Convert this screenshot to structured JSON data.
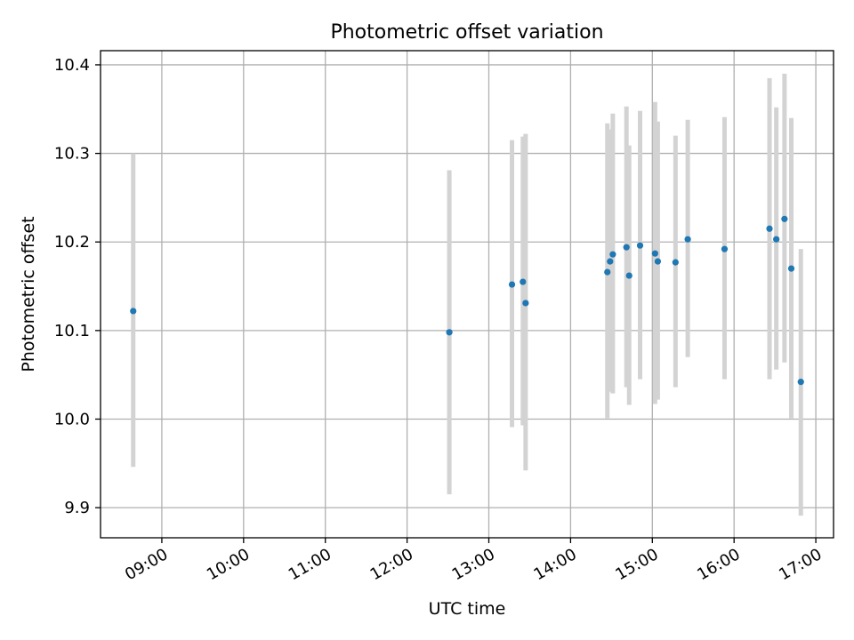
{
  "chart_data": {
    "type": "scatter",
    "title": "Photometric offset variation",
    "xlabel": "UTC time",
    "ylabel": "Photometric offset",
    "x_scale": "time",
    "xlim": [
      "08:15",
      "17:13"
    ],
    "ylim": [
      9.866,
      10.416
    ],
    "x_ticks": [
      "09:00",
      "10:00",
      "11:00",
      "12:00",
      "13:00",
      "14:00",
      "15:00",
      "16:00",
      "17:00"
    ],
    "y_ticks": [
      "9.9",
      "10.0",
      "10.1",
      "10.2",
      "10.3",
      "10.4"
    ],
    "grid": true,
    "colors": {
      "point": "#1f77b4",
      "errorbar": "#d3d3d3",
      "grid": "#b0b0b0"
    },
    "series": [
      {
        "x": [
          "08:39",
          "12:31",
          "13:17",
          "13:25",
          "13:27",
          "14:27",
          "14:29",
          "14:31",
          "14:41",
          "14:43",
          "14:51",
          "15:02",
          "15:04",
          "15:17",
          "15:26",
          "15:53",
          "16:26",
          "16:31",
          "16:37",
          "16:42",
          "16:49"
        ],
        "y": [
          10.122,
          10.098,
          10.152,
          10.155,
          10.131,
          10.166,
          10.178,
          10.186,
          10.194,
          10.162,
          10.196,
          10.187,
          10.178,
          10.177,
          10.203,
          10.192,
          10.215,
          10.203,
          10.226,
          10.17,
          10.042
        ],
        "ylow": [
          9.946,
          9.915,
          9.991,
          9.993,
          9.942,
          10.001,
          10.031,
          10.029,
          10.036,
          10.016,
          10.045,
          10.017,
          10.022,
          10.036,
          10.07,
          10.045,
          10.045,
          10.056,
          10.064,
          10.001,
          9.891
        ],
        "yhigh": [
          10.3,
          10.281,
          10.315,
          10.319,
          10.322,
          10.334,
          10.327,
          10.345,
          10.353,
          10.309,
          10.348,
          10.358,
          10.336,
          10.32,
          10.338,
          10.341,
          10.385,
          10.352,
          10.39,
          10.34,
          10.192
        ]
      }
    ]
  }
}
